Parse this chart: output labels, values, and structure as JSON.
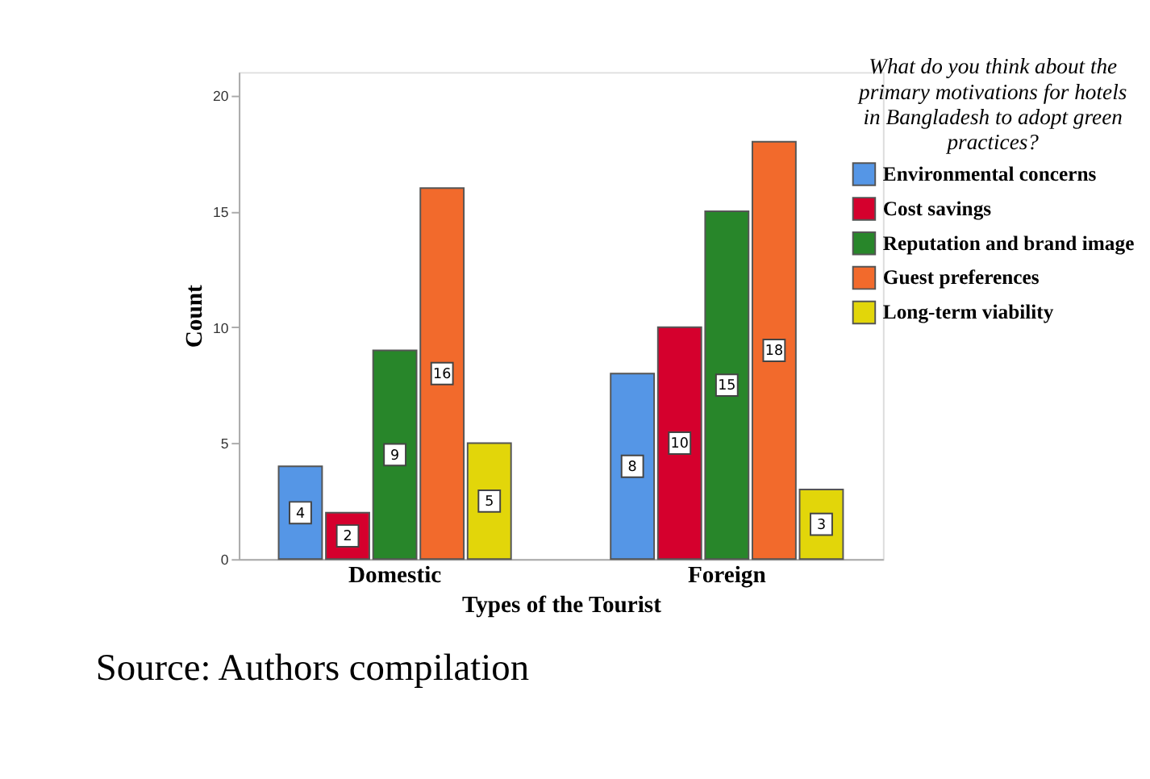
{
  "chart_data": {
    "type": "bar",
    "xlabel": "Types of the Tourist",
    "ylabel": "Count",
    "legend_title": "What do you think about the primary motivations for hotels in Bangladesh to adopt green practices?",
    "categories": [
      "Domestic",
      "Foreign"
    ],
    "series": [
      {
        "name": "Environmental concerns",
        "color": "#5596e6",
        "values": [
          4,
          8
        ]
      },
      {
        "name": "Cost savings",
        "color": "#d5002d",
        "values": [
          2,
          10
        ]
      },
      {
        "name": "Reputation and brand image",
        "color": "#28862a",
        "values": [
          9,
          15
        ]
      },
      {
        "name": "Guest preferences",
        "color": "#f26a2c",
        "values": [
          16,
          18
        ]
      },
      {
        "name": "Long-term viability",
        "color": "#e2d60a",
        "values": [
          5,
          3
        ]
      }
    ],
    "ylim": [
      0,
      21
    ],
    "yticks": [
      0,
      5,
      10,
      15,
      20
    ],
    "grid": false,
    "legend": "top right",
    "data_labels": true,
    "annotations": [
      "Source: Authors compilation"
    ]
  }
}
